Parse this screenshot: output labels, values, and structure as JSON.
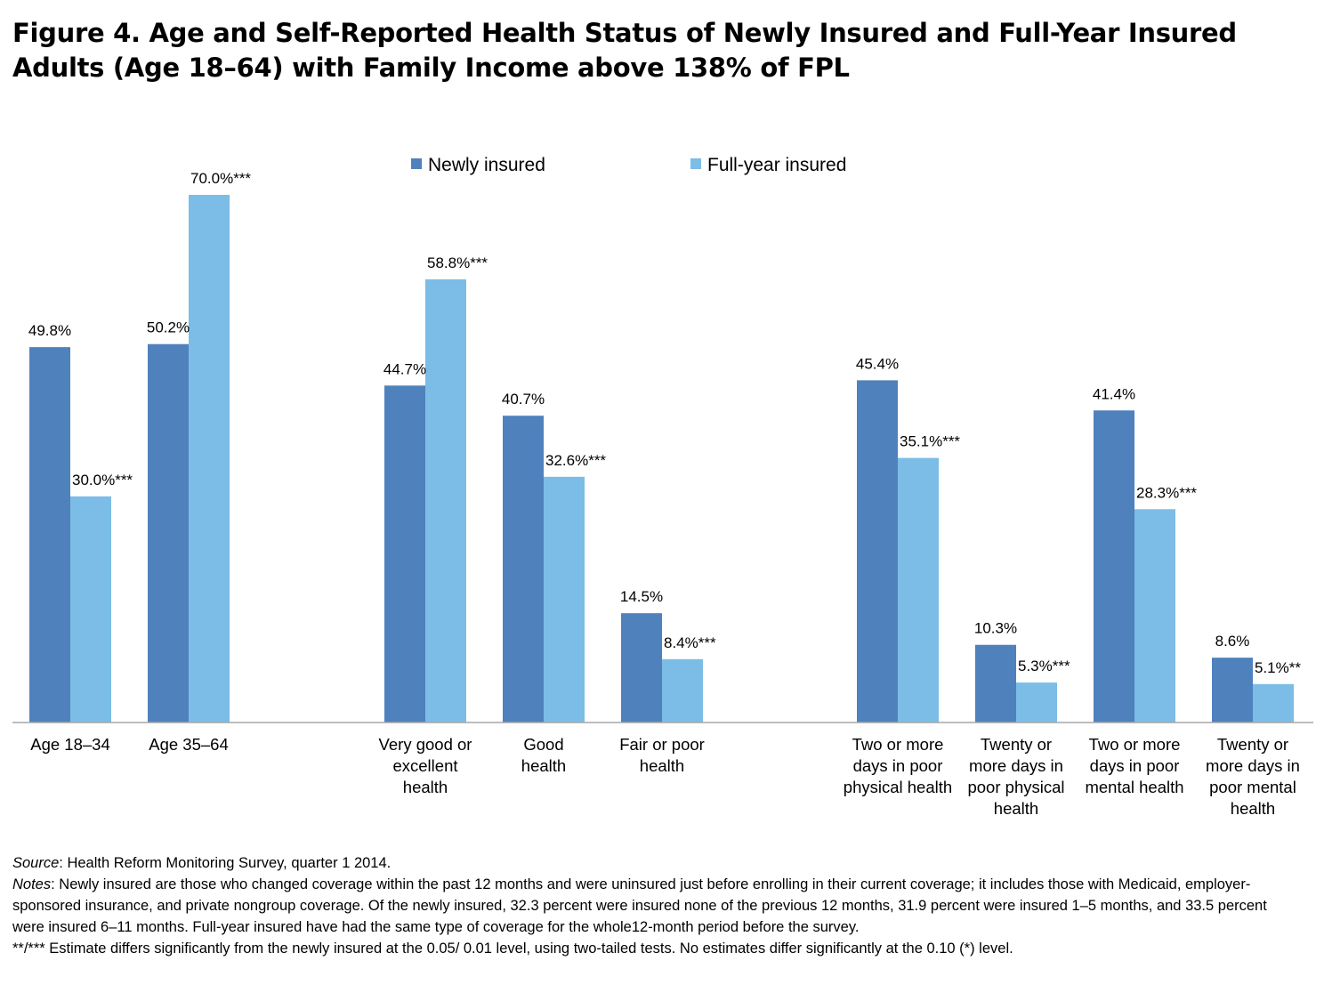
{
  "title": "Figure 4. Age and Self-Reported Health Status of Newly Insured and Full-Year Insured Adults (Age 18–64) with Family Income above 138% of FPL",
  "chart_data": {
    "type": "bar",
    "ylim": [
      0,
      75
    ],
    "grid": false,
    "legend_position": "top",
    "series": [
      {
        "name": "Newly insured",
        "color": "#4f81bd",
        "values": [
          49.8,
          50.2,
          44.7,
          40.7,
          14.5,
          45.4,
          10.3,
          41.4,
          8.6
        ],
        "labels": [
          "49.8%",
          "50.2%",
          "44.7%",
          "40.7%",
          "14.5%",
          "45.4%",
          "10.3%",
          "41.4%",
          "8.6%"
        ]
      },
      {
        "name": "Full-year insured",
        "color": "#7bbde6",
        "values": [
          30.0,
          70.0,
          58.8,
          32.6,
          8.4,
          35.1,
          5.3,
          28.3,
          5.1
        ],
        "labels": [
          "30.0%***",
          "70.0%***",
          "58.8%***",
          "32.6%***",
          "8.4%***",
          "35.1%***",
          "5.3%***",
          "28.3%***",
          "5.1%**"
        ]
      }
    ],
    "categories": [
      {
        "label": [
          "Age 18–34"
        ],
        "group": 0
      },
      {
        "label": [
          "Age 35–64"
        ],
        "group": 0
      },
      {
        "label": [
          "Very good or",
          "excellent",
          "health"
        ],
        "group": 1
      },
      {
        "label": [
          "Good",
          "health"
        ],
        "group": 1
      },
      {
        "label": [
          "Fair or poor",
          "health"
        ],
        "group": 1
      },
      {
        "label": [
          "Two or more",
          "days in poor",
          "physical health"
        ],
        "group": 2
      },
      {
        "label": [
          "Twenty or",
          "more days in",
          "poor physical",
          "health"
        ],
        "group": 2
      },
      {
        "label": [
          "Two or more",
          "days in poor",
          "mental health"
        ],
        "group": 2
      },
      {
        "label": [
          "Twenty or",
          "more days in",
          "poor mental",
          "health"
        ],
        "group": 2
      }
    ]
  },
  "notes": {
    "source_label": "Source",
    "source_text": ": Health Reform Monitoring Survey, quarter 1 2014.",
    "notes_label": "Notes",
    "notes_text": ": Newly insured are those who changed coverage within the past 12 months and were uninsured just before enrolling in their current coverage; it includes those with Medicaid, employer-sponsored insurance, and private nongroup coverage. Of the newly insured, 32.3 percent were insured none of the previous 12 months, 31.9 percent were insured 1–5 months, and 33.5 percent were insured 6–11 months. Full-year insured have had the same type of coverage for the whole12-month period before the survey.",
    "significance_text": "**/*** Estimate differs significantly from the newly insured at the 0.05/ 0.01 level, using two-tailed tests. No estimates differ significantly at the 0.10 (*) level."
  }
}
